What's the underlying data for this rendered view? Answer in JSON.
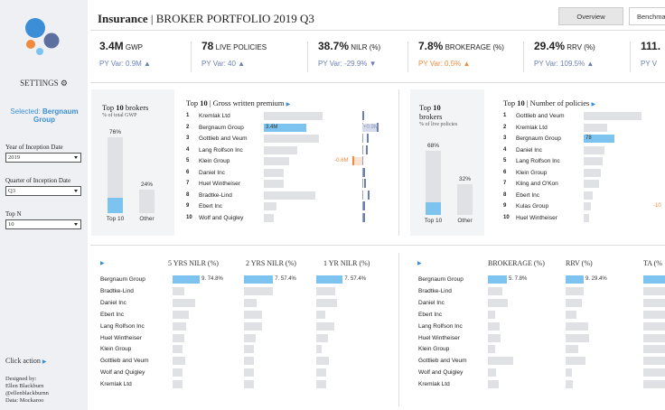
{
  "colors": {
    "accent": "#3c8fd6",
    "bar": "#7cc4ef",
    "bar_bg": "#dfe1e5",
    "positive_var": "#6b7fb3",
    "negative_var": "#f08a3c"
  },
  "sidebar": {
    "settings_label": "SETTINGS",
    "settings_icon": "gear-icon",
    "selected_prefix": "Selected:",
    "selected_value": "Bergnaum Group",
    "filters": [
      {
        "label": "Year of Inception Date",
        "value": "2019"
      },
      {
        "label": "Quarter of Inception Date",
        "value": "Q3"
      },
      {
        "label": "Top N",
        "value": "10"
      }
    ],
    "click_action": "Click action",
    "credits": [
      "Designed by:",
      "Ellen Blackburn",
      "@ellenblackburnn",
      "Data: Mockaroo"
    ]
  },
  "header": {
    "title_bold": "Insurance",
    "title_sep": "|",
    "title_rest": "BROKER PORTFOLIO 2019 Q3",
    "tabs": [
      {
        "label": "Overview"
      },
      {
        "label": "Benchma"
      }
    ]
  },
  "kpis": [
    {
      "value": "3.4M",
      "unit": "GWP",
      "var": "PY Var: 0.9M ▲",
      "color": "#6b7fb3"
    },
    {
      "value": "78",
      "unit": "LIVE POLICIES",
      "var": "PY Var: 40 ▲",
      "color": "#6b7fb3"
    },
    {
      "value": "38.7%",
      "unit": "NILR (%)",
      "var": "PY Var: -29.9% ▼",
      "color": "#6b7fb3"
    },
    {
      "value": "7.8%",
      "unit": "BROKERAGE (%)",
      "var": "PY Var: 0.5% ▲",
      "color": "#f08a3c"
    },
    {
      "value": "29.4%",
      "unit": "RRV (%)",
      "var": "PY Var: 109.5% ▲",
      "color": "#6b7fb3"
    },
    {
      "value": "111.",
      "unit": "",
      "var": "PY V",
      "color": "#6b7fb3"
    }
  ],
  "gwp_share": {
    "title_pre": "Top",
    "title_n": "10",
    "title_post": "brokers",
    "subtitle": "% of total GWP",
    "bars": [
      {
        "category": "Top 10",
        "value": 76,
        "label": "76%"
      },
      {
        "category": "Other",
        "value": 24,
        "label": "24%"
      }
    ]
  },
  "gwp_top": {
    "title_pre": "Top",
    "title_n": "10",
    "title_post": "| Gross written premium",
    "rows": [
      {
        "rank": "1",
        "name": "Kremlak Ltd",
        "value": 0.47,
        "var": 0.02
      },
      {
        "rank": "2",
        "name": "Bergnaum Group",
        "value": 0.34,
        "var": 0.9,
        "label": "3.4M",
        "var_label": "+0.9M",
        "highlight": true
      },
      {
        "rank": "3",
        "name": "Gottlieb and Veum",
        "value": 0.44,
        "var": 0.3
      },
      {
        "rank": "4",
        "name": "Lang Rolfson Inc",
        "value": 0.27,
        "var": 0.2
      },
      {
        "rank": "5",
        "name": "Klein Group",
        "value": 0.2,
        "var": -0.6,
        "var_label": "-0.6M"
      },
      {
        "rank": "6",
        "name": "Daniel Inc",
        "value": 0.16,
        "var": 0.05
      },
      {
        "rank": "7",
        "name": "Huel Wintheiser",
        "value": 0.16,
        "var": 0.1
      },
      {
        "rank": "8",
        "name": "Bradtke-Lind",
        "value": 0.41,
        "var": 0.35
      },
      {
        "rank": "9",
        "name": "Ebert Inc",
        "value": 0.1,
        "var": 0.05
      },
      {
        "rank": "10",
        "name": "Wolf and Quigley",
        "value": 0.08,
        "var": 0.05
      }
    ]
  },
  "policy_share": {
    "title_pre": "Top",
    "title_n": "10",
    "title_post": "brokers",
    "subtitle": "% of live policies",
    "bars": [
      {
        "category": "Top 10",
        "value": 68,
        "label": "68%"
      },
      {
        "category": "Other",
        "value": 32,
        "label": "32%"
      }
    ]
  },
  "policy_top": {
    "title_pre": "Top",
    "title_n": "10",
    "title_post": "| Number of policies",
    "rows": [
      {
        "rank": "1",
        "name": "Gottlieb and Veum",
        "value": 145
      },
      {
        "rank": "2",
        "name": "Kremlak Ltd",
        "value": 60
      },
      {
        "rank": "3",
        "name": "Bergnaum Group",
        "value": 78,
        "label": "78",
        "highlight": true
      },
      {
        "rank": "4",
        "name": "Daniel Inc",
        "value": 52
      },
      {
        "rank": "5",
        "name": "Lang Rolfson Inc",
        "value": 48
      },
      {
        "rank": "6",
        "name": "Klein Group",
        "value": 42
      },
      {
        "rank": "7",
        "name": "Kling and O'Kon",
        "value": 38
      },
      {
        "rank": "8",
        "name": "Ebert Inc",
        "value": 22
      },
      {
        "rank": "9",
        "name": "Kulas Group",
        "value": 18,
        "var_label": "-10"
      },
      {
        "rank": "10",
        "name": "Huel Wintheiser",
        "value": 14
      }
    ]
  },
  "nilr_table": {
    "columns": [
      "5 YRS NILR (%)",
      "2 YRS NILR (%)",
      "1 YR NILR (%)"
    ],
    "rows": [
      {
        "name": "Bergnaum Group",
        "values": [
          0.43,
          0.46,
          0.42
        ],
        "labels": [
          "9. 74.8%",
          "7. 57.4%",
          "7. 57.4%"
        ],
        "highlight": true
      },
      {
        "name": "Bradtke-Lind",
        "values": [
          0.18,
          0.45,
          0.3
        ]
      },
      {
        "name": "Daniel Inc",
        "values": [
          0.35,
          0.2,
          0.33
        ]
      },
      {
        "name": "Ebert Inc",
        "values": [
          0.25,
          0.28,
          0.14
        ]
      },
      {
        "name": "Lang Rolfson Inc",
        "values": [
          0.22,
          0.28,
          0.28
        ]
      },
      {
        "name": "Huel Wintheiser",
        "values": [
          0.18,
          0.18,
          0.18
        ]
      },
      {
        "name": "Klein Group",
        "values": [
          0.16,
          0.16,
          0.08
        ]
      },
      {
        "name": "Gottlieb and Veum",
        "values": [
          0.2,
          0.16,
          0.2
        ]
      },
      {
        "name": "Wolf and Quigley",
        "values": [
          0.16,
          0.16,
          0.15
        ]
      },
      {
        "name": "Kremlak Ltd",
        "values": [
          0.15,
          0.16,
          0.16
        ]
      }
    ]
  },
  "ratio_table": {
    "columns": [
      "BROKERAGE (%)",
      "RRV (%)",
      "TA (%"
    ],
    "rows": [
      {
        "name": "Bergnaum Group",
        "values": [
          0.42,
          0.4,
          0.5
        ],
        "labels": [
          "5. 7.8%",
          "9. 29.4%",
          ""
        ],
        "highlight": true
      },
      {
        "name": "Bradtke-Lind",
        "values": [
          0.32,
          0.4,
          0.5
        ]
      },
      {
        "name": "Daniel Inc",
        "values": [
          0.44,
          0.36,
          0.5
        ]
      },
      {
        "name": "Ebert Inc",
        "values": [
          0.16,
          0.24,
          0.5
        ]
      },
      {
        "name": "Lang Rolfson Inc",
        "values": [
          0.26,
          0.5,
          0.5
        ]
      },
      {
        "name": "Huel Wintheiser",
        "values": [
          0.28,
          0.52,
          0.5
        ]
      },
      {
        "name": "Klein Group",
        "values": [
          0.16,
          0.28,
          0.5
        ]
      },
      {
        "name": "Gottlieb and Veum",
        "values": [
          0.55,
          0.44,
          0.5
        ]
      },
      {
        "name": "Wolf and Quigley",
        "values": [
          0.18,
          0.14,
          0.5
        ]
      },
      {
        "name": "Kremlak Ltd",
        "values": [
          0.24,
          0.16,
          0.5
        ]
      }
    ]
  }
}
